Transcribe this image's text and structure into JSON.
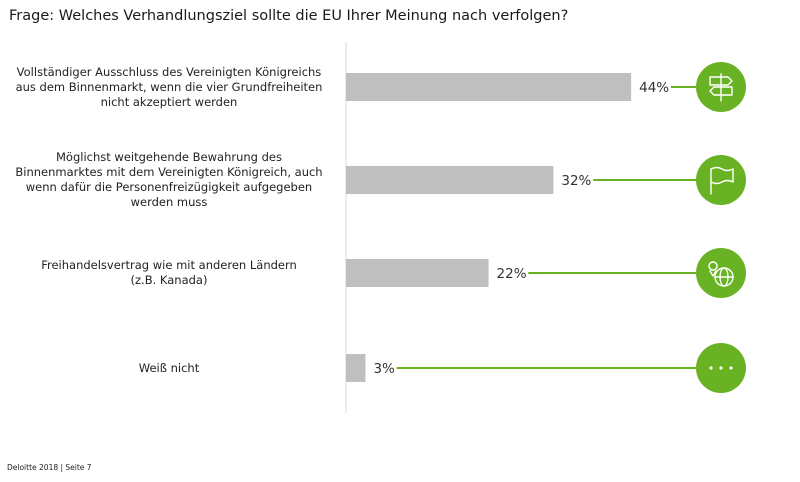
{
  "title": "Frage: Welches Verhandlungsziel sollte die EU Ihrer Meinung nach verfolgen?",
  "footer": "Deloitte 2018 | Seite 7",
  "colors": {
    "bar": "#bfbfbf",
    "accent": "#69b224",
    "axis": "#e6e6e6",
    "text": "#222222"
  },
  "chart_data": {
    "type": "bar",
    "orientation": "horizontal",
    "title": "Frage: Welches Verhandlungsziel sollte die EU Ihrer Meinung nach verfolgen?",
    "xlabel": "",
    "ylabel": "",
    "xlim": [
      0,
      100
    ],
    "grid": false,
    "categories": [
      [
        "Vollständiger Ausschluss des Vereinigten Königreichs",
        "aus dem Binnenmarkt, wenn die vier Grundfreiheiten",
        "nicht akzeptiert werden"
      ],
      [
        "Möglichst weitgehende Bewahrung des",
        "Binnenmarktes mit dem Vereinigten Königreich, auch",
        "wenn dafür die Personenfreizügigkeit aufgegeben",
        "werden muss"
      ],
      [
        "Freihandelsvertrag wie mit anderen Ländern",
        "(z.B. Kanada)"
      ],
      [
        "Weiß nicht"
      ]
    ],
    "values": [
      44,
      32,
      22,
      3
    ],
    "data_labels": [
      "44%",
      "32%",
      "22%",
      "3%"
    ],
    "icons": [
      "signpost-icon",
      "flag-icon",
      "globe-location-icon",
      "more-dots-icon"
    ]
  }
}
